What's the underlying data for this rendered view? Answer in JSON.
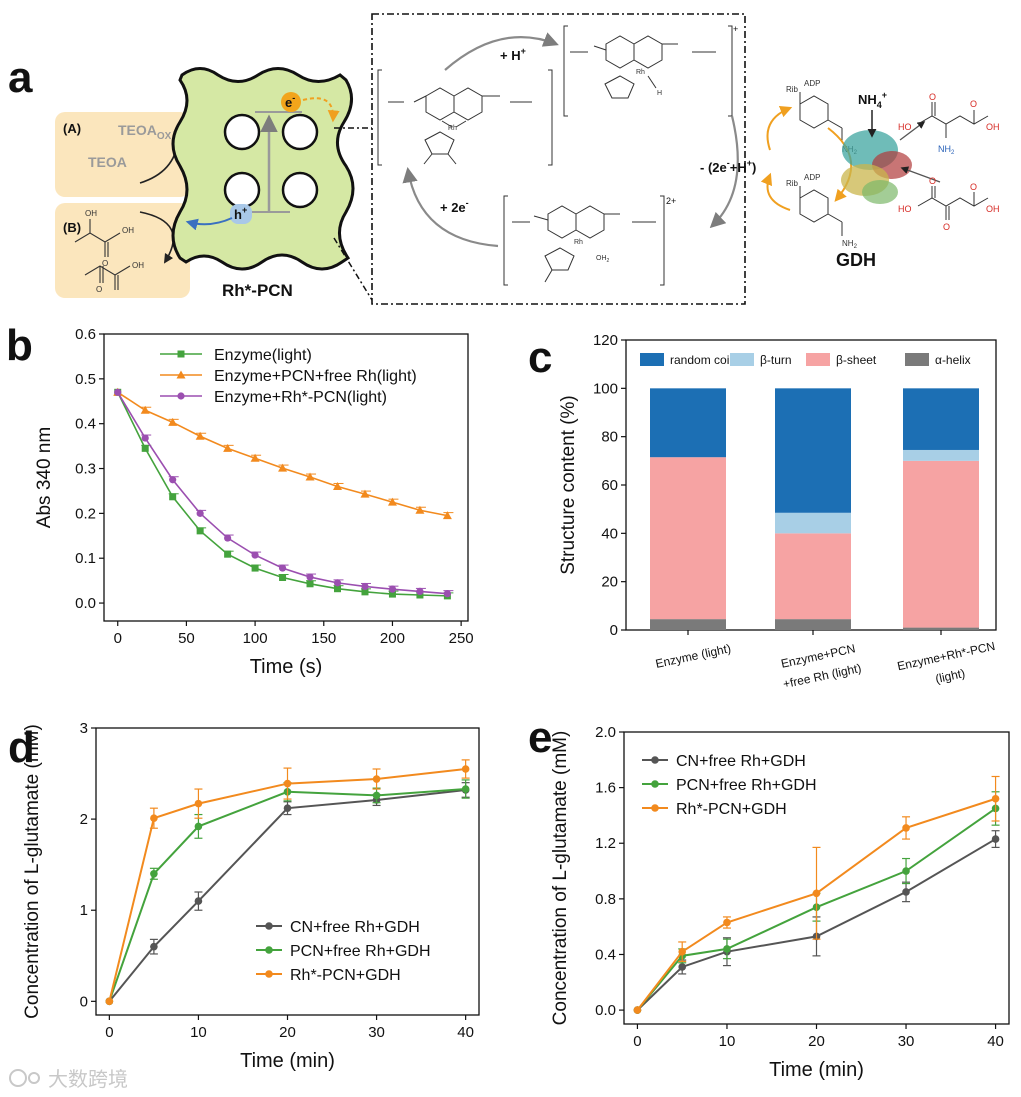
{
  "colors": {
    "green": "#44a33d",
    "orange": "#f28a1e",
    "purple": "#9b4fb0",
    "grey": "#555555",
    "random_coil": "#1c6fb4",
    "beta_turn": "#a8cfe6",
    "beta_sheet": "#f6a3a3",
    "alpha_helix": "#7a7a7a",
    "pcn_fill": "#d5e8a4",
    "panel_bg": "#fbe6bd",
    "accent_red": "#d62a24",
    "accent_blue": "#2a62b8"
  },
  "panel_a": {
    "label": "a",
    "box_a_label": "(A)",
    "box_b_label": "(B)",
    "teoa_ox_main": "TEOA",
    "teoa_ox_sub": "OX",
    "teoa": "TEOA",
    "electron": "e",
    "hole": "h",
    "pcn_label": "Rh*-PCN",
    "step_h_plus": "+ H",
    "step_2e": "+ 2e",
    "step_release": "- (2e",
    "step_release_tail": "+H",
    "charge_plus": "+",
    "charge_2plus": "2+",
    "rh": "Rh",
    "h_atom": "H",
    "oh2": "OH",
    "oh2_sub": "2",
    "nh4": "NH",
    "nh4_sub": "4",
    "nh4_sup": "+",
    "gdh": "GDH",
    "rib": "Rib",
    "adp": "ADP",
    "nh2": "NH",
    "nh2_sub": "2",
    "oh": "OH",
    "ho": "HO",
    "o": "O"
  },
  "chart_data": [
    {
      "panel": "b",
      "type": "line",
      "xlabel": "Time (s)",
      "ylabel": "Abs 340 nm",
      "xlim": [
        -10,
        255
      ],
      "ylim": [
        -0.04,
        0.6
      ],
      "xticks": [
        "0",
        "50",
        "100",
        "150",
        "200",
        "250"
      ],
      "yticks": [
        "0.0",
        "0.1",
        "0.2",
        "0.3",
        "0.4",
        "0.5",
        "0.6"
      ],
      "x": [
        0,
        20,
        40,
        60,
        80,
        100,
        120,
        140,
        160,
        180,
        200,
        220,
        240
      ],
      "series": [
        {
          "name": "Enzyme(light)",
          "marker": "square",
          "color": "#44a33d",
          "values": [
            0.47,
            0.345,
            0.237,
            0.161,
            0.109,
            0.078,
            0.057,
            0.043,
            0.032,
            0.025,
            0.02,
            0.018,
            0.016
          ]
        },
        {
          "name": "Enzyme+PCN+free Rh(light)",
          "marker": "triangle",
          "color": "#f28a1e",
          "values": [
            0.47,
            0.43,
            0.403,
            0.372,
            0.345,
            0.323,
            0.301,
            0.281,
            0.26,
            0.243,
            0.225,
            0.207,
            0.195
          ]
        },
        {
          "name": "Enzyme+Rh*-PCN(light)",
          "marker": "circle",
          "color": "#9b4fb0",
          "values": [
            0.47,
            0.368,
            0.275,
            0.2,
            0.145,
            0.107,
            0.078,
            0.058,
            0.045,
            0.037,
            0.031,
            0.026,
            0.021
          ]
        }
      ]
    },
    {
      "panel": "c",
      "type": "bar",
      "stacked": true,
      "xlabel": "",
      "ylabel": "Structure content (%)",
      "ylim": [
        0,
        120
      ],
      "yticks": [
        "0",
        "20",
        "40",
        "60",
        "80",
        "100",
        "120"
      ],
      "categories": [
        [
          "Enzyme (light)"
        ],
        [
          "Enzyme+PCN",
          "+free Rh (light)"
        ],
        [
          "Enzyme+Rh*-PCN",
          "(light)"
        ]
      ],
      "series": [
        {
          "name": "α-helix",
          "color": "#7a7a7a",
          "values": [
            4.5,
            4.5,
            1.0
          ]
        },
        {
          "name": "β-sheet",
          "color": "#f6a3a3",
          "values": [
            67.0,
            35.5,
            69.0
          ]
        },
        {
          "name": "β-turn",
          "color": "#a8cfe6",
          "values": [
            0.0,
            8.5,
            4.5
          ]
        },
        {
          "name": "random coil",
          "color": "#1c6fb4",
          "values": [
            28.5,
            51.5,
            25.5
          ]
        }
      ],
      "legend_order": [
        "random coil",
        "β-turn",
        "β-sheet",
        "α-helix"
      ]
    },
    {
      "panel": "d",
      "type": "line",
      "xlabel": "Time (min)",
      "ylabel": "Concentration of L-glutamate (mM)",
      "xlim": [
        -1.5,
        41.5
      ],
      "ylim": [
        -0.15,
        3
      ],
      "xticks": [
        "0",
        "10",
        "20",
        "30",
        "40"
      ],
      "yticks": [
        "0",
        "1",
        "2",
        "3"
      ],
      "x": [
        0,
        5,
        10,
        20,
        30,
        40
      ],
      "series": [
        {
          "name": "CN+free Rh+GDH",
          "color": "#555555",
          "values": [
            0,
            0.6,
            1.1,
            2.12,
            2.21,
            2.32
          ],
          "errors": [
            0,
            0.08,
            0.1,
            0.07,
            0.06,
            0.08
          ]
        },
        {
          "name": "PCN+free Rh+GDH",
          "color": "#44a33d",
          "values": [
            0,
            1.4,
            1.92,
            2.3,
            2.26,
            2.33
          ],
          "errors": [
            0,
            0.06,
            0.13,
            0.1,
            0.08,
            0.1
          ]
        },
        {
          "name": "Rh*-PCN+GDH",
          "color": "#f28a1e",
          "values": [
            0,
            2.01,
            2.17,
            2.39,
            2.44,
            2.55
          ],
          "errors": [
            0,
            0.11,
            0.16,
            0.17,
            0.11,
            0.1
          ]
        }
      ]
    },
    {
      "panel": "e",
      "type": "line",
      "xlabel": "Time (min)",
      "ylabel": "Concentration of L-glutamate (mM)",
      "xlim": [
        -1.5,
        41.5
      ],
      "ylim": [
        -0.1,
        2.0
      ],
      "xticks": [
        "0",
        "10",
        "20",
        "30",
        "40"
      ],
      "yticks": [
        "0.0",
        "0.4",
        "0.8",
        "1.2",
        "1.6",
        "2.0"
      ],
      "x": [
        0,
        5,
        10,
        20,
        30,
        40
      ],
      "series": [
        {
          "name": "CN+free Rh+GDH",
          "color": "#555555",
          "values": [
            0,
            0.31,
            0.42,
            0.53,
            0.85,
            1.23
          ],
          "errors": [
            0,
            0.05,
            0.1,
            0.14,
            0.07,
            0.06
          ]
        },
        {
          "name": "PCN+free Rh+GDH",
          "color": "#44a33d",
          "values": [
            0,
            0.39,
            0.44,
            0.74,
            1.0,
            1.45
          ],
          "errors": [
            0,
            0.05,
            0.07,
            0.1,
            0.09,
            0.12
          ]
        },
        {
          "name": "Rh*-PCN+GDH",
          "color": "#f28a1e",
          "values": [
            0,
            0.42,
            0.63,
            0.84,
            1.31,
            1.52
          ],
          "errors": [
            0,
            0.07,
            0.04,
            0.33,
            0.08,
            0.16
          ]
        }
      ]
    }
  ],
  "watermark": "大数跨境"
}
